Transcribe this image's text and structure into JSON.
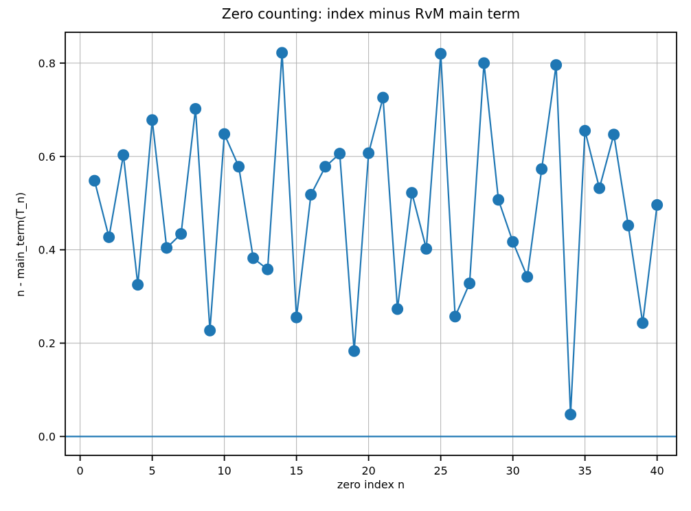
{
  "chart_data": {
    "type": "line",
    "title": "Zero counting: index minus RvM main term",
    "xlabel": "zero index n",
    "ylabel": "n - main_term(T_n)",
    "x": [
      1,
      2,
      3,
      4,
      5,
      6,
      7,
      8,
      9,
      10,
      11,
      12,
      13,
      14,
      15,
      16,
      17,
      18,
      19,
      20,
      21,
      22,
      23,
      24,
      25,
      26,
      27,
      28,
      29,
      30,
      31,
      32,
      33,
      34,
      35,
      36,
      37,
      38,
      39,
      40
    ],
    "series": [
      {
        "name": "n - main_term(T_n)",
        "values": [
          0.548,
          0.427,
          0.603,
          0.325,
          0.678,
          0.404,
          0.434,
          0.702,
          0.227,
          0.648,
          0.578,
          0.382,
          0.358,
          0.822,
          0.255,
          0.518,
          0.578,
          0.606,
          0.183,
          0.607,
          0.726,
          0.273,
          0.522,
          0.402,
          0.82,
          0.257,
          0.328,
          0.8,
          0.507,
          0.417,
          0.342,
          0.573,
          0.796,
          0.047,
          0.655,
          0.532,
          0.647,
          0.452,
          0.243,
          0.496
        ]
      }
    ],
    "zero_line": 0.0,
    "xticks": [
      0,
      5,
      10,
      15,
      20,
      25,
      30,
      35,
      40
    ],
    "yticks": [
      0.0,
      0.2,
      0.4,
      0.6,
      0.8
    ],
    "xlim": [
      -1.03,
      41.35
    ],
    "ylim": [
      -0.0405,
      0.866
    ],
    "grid": true,
    "legend_position": "none",
    "colors": {
      "series": "#1f77b4",
      "zero_line": "#1f77b4",
      "grid": "#b0b0b0",
      "spine": "#000000",
      "background": "#ffffff"
    }
  }
}
